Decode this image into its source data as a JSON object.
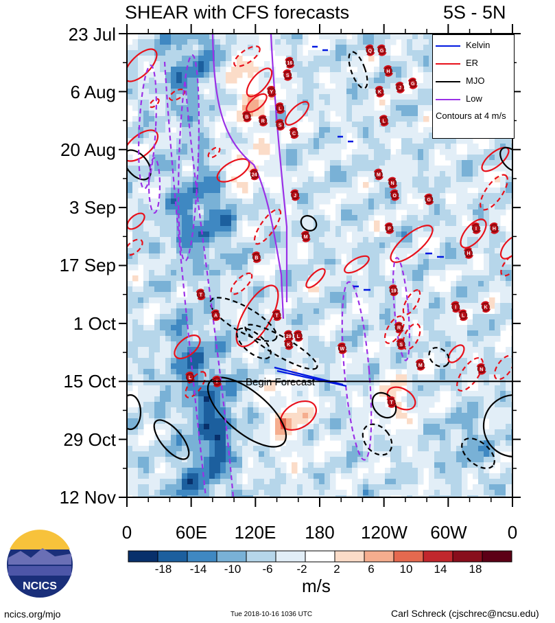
{
  "title_left": "SHEAR with CFS forecasts",
  "title_right": "5S - 5N",
  "footer": {
    "left": "ncics.org/mjo",
    "middle": "Tue 2018-10-16 1036 UTC",
    "right": "Carl Schreck (cjschrec@ncsu.edu)",
    "logo_text": "NCICS"
  },
  "chart_data": {
    "type": "heatmap",
    "title": "SHEAR with CFS forecasts",
    "region": "5S - 5N",
    "y_tick_labels": [
      "23 Jul",
      "6 Aug",
      "20 Aug",
      "3 Sep",
      "17 Sep",
      "1 Oct",
      "15 Oct",
      "29 Oct",
      "12 Nov"
    ],
    "x_tick_labels": [
      "0",
      "60E",
      "120E",
      "180",
      "120W",
      "60W",
      "0"
    ],
    "x_range_lon_east": [
      0,
      360
    ],
    "y_range_dates": [
      "2018-07-23",
      "2018-11-12"
    ],
    "forecast_start": "2018-10-15",
    "forecast_label": "Begin Forecast",
    "colorbar": {
      "label": "m/s",
      "ticks": [
        -18,
        -14,
        -10,
        -6,
        -2,
        2,
        6,
        10,
        14,
        18
      ],
      "colors": [
        "#08306b",
        "#1c5f9e",
        "#3f88c2",
        "#79b1d6",
        "#b6d6ea",
        "#e2eef7",
        "#ffffff",
        "#fbdcc8",
        "#f5ad8e",
        "#e4694f",
        "#c1272d",
        "#880e1c",
        "#5c0016"
      ]
    },
    "legend": {
      "entries": [
        {
          "name": "Kelvin",
          "color": "#0018e0"
        },
        {
          "name": "ER",
          "color": "#e8101a"
        },
        {
          "name": "MJO",
          "color": "#000000"
        },
        {
          "name": "Low",
          "color": "#9a30e6"
        }
      ],
      "note": "Contours at 4 m/s"
    },
    "storms": [
      {
        "label": "16",
        "lon": 152,
        "date": "2018-07-30"
      },
      {
        "label": "S",
        "lon": 150,
        "date": "2018-08-02"
      },
      {
        "label": "Y",
        "lon": 135,
        "date": "2018-08-06"
      },
      {
        "label": "B",
        "lon": 112,
        "date": "2018-08-12"
      },
      {
        "label": "L",
        "lon": 143,
        "date": "2018-08-10"
      },
      {
        "label": "R",
        "lon": 127,
        "date": "2018-08-13"
      },
      {
        "label": "S",
        "lon": 143,
        "date": "2018-08-14"
      },
      {
        "label": "C",
        "lon": 156,
        "date": "2018-08-16"
      },
      {
        "label": "24",
        "lon": 119,
        "date": "2018-08-26"
      },
      {
        "label": "J",
        "lon": 157,
        "date": "2018-08-31"
      },
      {
        "label": "M",
        "lon": 167,
        "date": "2018-09-10"
      },
      {
        "label": "B",
        "lon": 121,
        "date": "2018-09-15"
      },
      {
        "label": "T",
        "lon": 69,
        "date": "2018-09-24"
      },
      {
        "label": "A",
        "lon": 83,
        "date": "2018-09-29"
      },
      {
        "label": "T",
        "lon": 140,
        "date": "2018-09-29"
      },
      {
        "label": "29",
        "lon": 151,
        "date": "2018-10-04"
      },
      {
        "label": "L",
        "lon": 160,
        "date": "2018-10-04"
      },
      {
        "label": "K",
        "lon": 151,
        "date": "2018-10-06"
      },
      {
        "label": "W",
        "lon": 201,
        "date": "2018-10-07"
      },
      {
        "label": "L",
        "lon": 59,
        "date": "2018-10-14"
      },
      {
        "label": "I",
        "lon": 84,
        "date": "2018-10-15"
      },
      {
        "label": "T",
        "lon": 247,
        "date": "2018-10-20"
      },
      {
        "label": "Q",
        "lon": 227,
        "date": "2018-07-27"
      },
      {
        "label": "G",
        "lon": 238,
        "date": "2018-07-27"
      },
      {
        "label": "H",
        "lon": 244,
        "date": "2018-08-01"
      },
      {
        "label": "K",
        "lon": 236,
        "date": "2018-08-06"
      },
      {
        "label": "J",
        "lon": 255,
        "date": "2018-08-05"
      },
      {
        "label": "G",
        "lon": 267,
        "date": "2018-08-04"
      },
      {
        "label": "L",
        "lon": 240,
        "date": "2018-08-13"
      },
      {
        "label": "M",
        "lon": 235,
        "date": "2018-08-26"
      },
      {
        "label": "N",
        "lon": 248,
        "date": "2018-08-28"
      },
      {
        "label": "O",
        "lon": 250,
        "date": "2018-08-31"
      },
      {
        "label": "G",
        "lon": 282,
        "date": "2018-09-01"
      },
      {
        "label": "P",
        "lon": 245,
        "date": "2018-09-08"
      },
      {
        "label": "I",
        "lon": 326,
        "date": "2018-09-08"
      },
      {
        "label": "H",
        "lon": 343,
        "date": "2018-09-08"
      },
      {
        "label": "H",
        "lon": 319,
        "date": "2018-09-14"
      },
      {
        "label": "19",
        "lon": 249,
        "date": "2018-09-23"
      },
      {
        "label": "I",
        "lon": 307,
        "date": "2018-09-27"
      },
      {
        "label": "L",
        "lon": 314,
        "date": "2018-09-29"
      },
      {
        "label": "K",
        "lon": 335,
        "date": "2018-09-27"
      },
      {
        "label": "R",
        "lon": 254,
        "date": "2018-10-02"
      },
      {
        "label": "S",
        "lon": 256,
        "date": "2018-10-06"
      },
      {
        "label": "M",
        "lon": 274,
        "date": "2018-10-11"
      },
      {
        "label": "N",
        "lon": 331,
        "date": "2018-10-12"
      }
    ]
  }
}
